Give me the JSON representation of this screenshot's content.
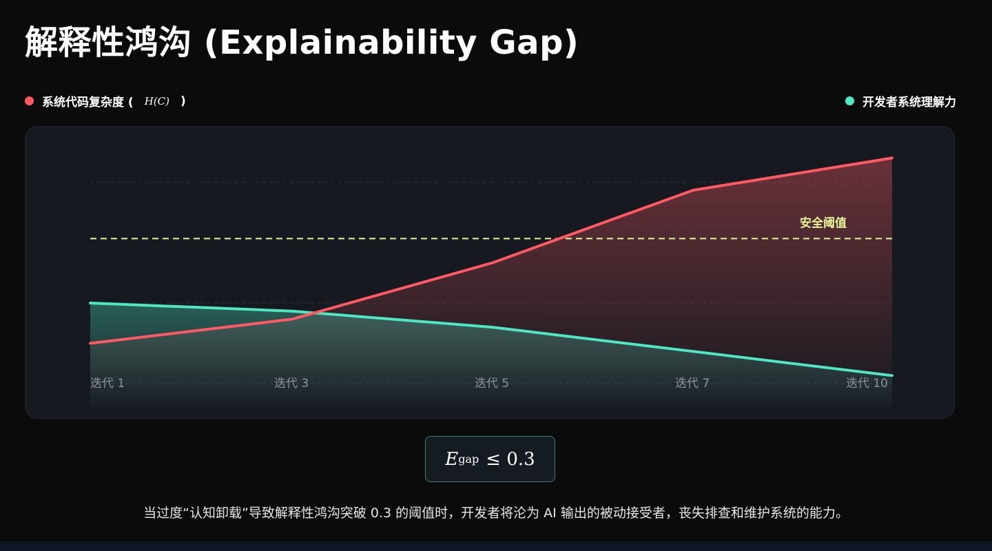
{
  "title": "解释性鸿沟 (Explainability Gap)",
  "legend": {
    "complexity_label_pre": "系统代码复杂度 (",
    "complexity_math": "H(C)",
    "complexity_label_post": ")",
    "understanding_label": "开发者系统理解力"
  },
  "colors": {
    "complexity": "#ff5a64",
    "understanding": "#4fe6c4",
    "threshold": "#e6f59a",
    "background": "#0b0b0c",
    "panel": "#161a20"
  },
  "formula": {
    "symbol": "E",
    "subscript": "gap",
    "relation": "≤ 0.3"
  },
  "caption": "当过度“认知卸载”导致解释性鸿沟突破 0.3 的阈值时，开发者将沦为 AI 输出的被动接受者，丧失排查和维护系统的能力。",
  "chart_data": {
    "type": "area",
    "categories": [
      "迭代 1",
      "迭代 3",
      "迭代 5",
      "迭代 7",
      "迭代 10"
    ],
    "series": [
      {
        "name": "系统代码复杂度 (H(C))",
        "color": "#ff5a64",
        "values": [
          10,
          16,
          30,
          48,
          56
        ]
      },
      {
        "name": "开发者系统理解力",
        "color": "#4fe6c4",
        "values": [
          20,
          18,
          14,
          8,
          2
        ]
      }
    ],
    "threshold": {
      "label": "安全阈值",
      "value": 36
    },
    "ylim": [
      0,
      65
    ],
    "grid": true,
    "legend_position": "top"
  }
}
